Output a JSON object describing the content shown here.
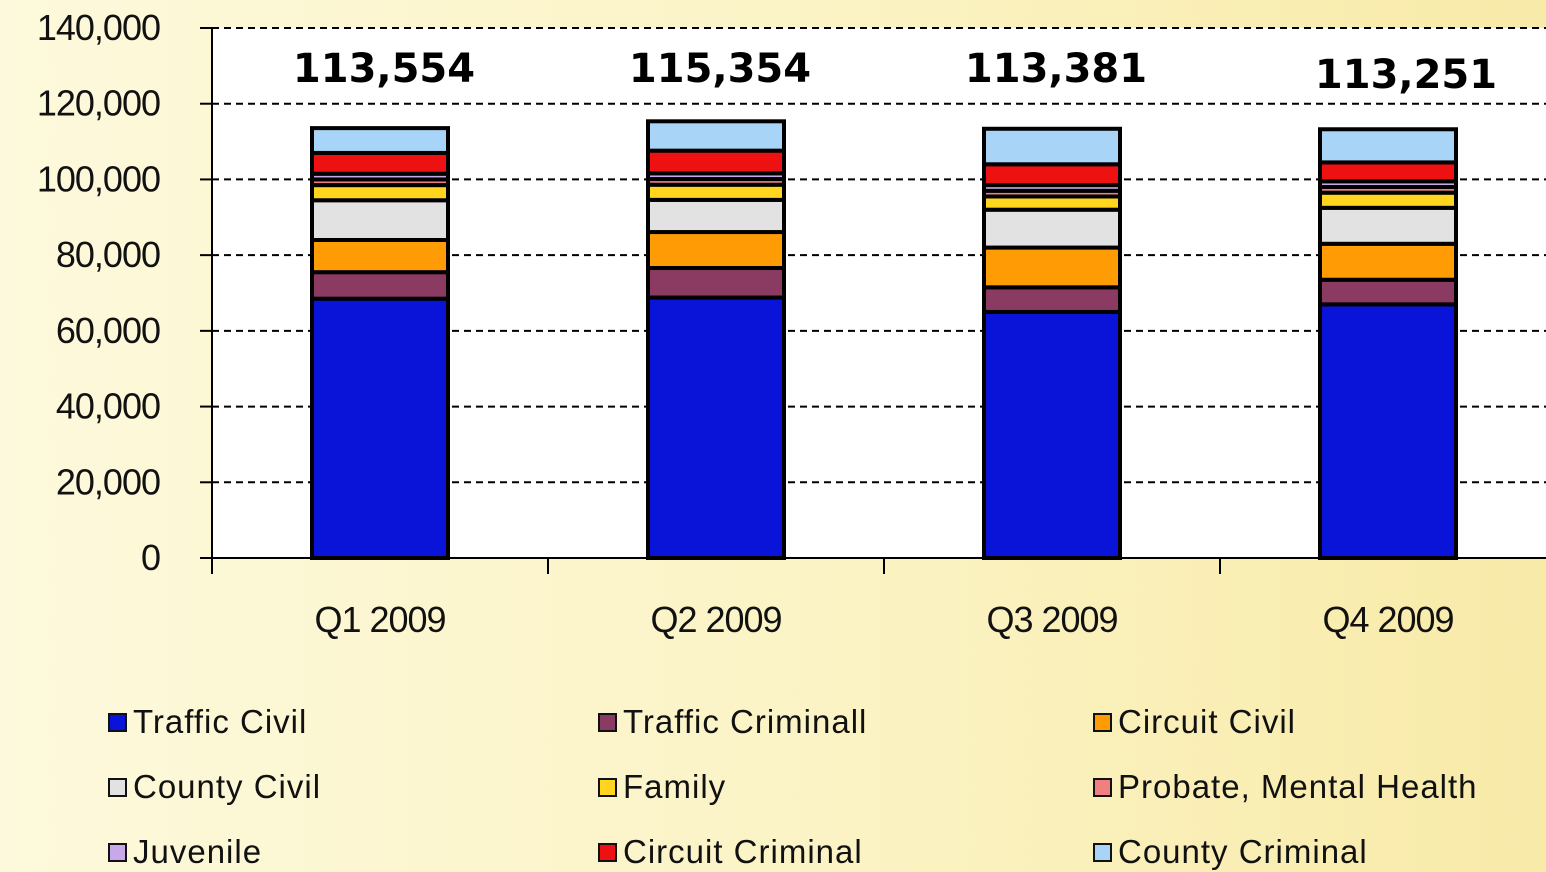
{
  "chart_data": {
    "type": "bar",
    "stacked": true,
    "categories": [
      "Q1 2009",
      "Q2 2009",
      "Q3 2009",
      "Q4 2009"
    ],
    "totals": [
      "113,554",
      "115,354",
      "113,381",
      "113,251"
    ],
    "yticks": [
      "0",
      "20,000",
      "40,000",
      "60,000",
      "80,000",
      "100,000",
      "120,000",
      "140,000"
    ],
    "ylim": [
      0,
      140000
    ],
    "grid": true,
    "legend_position": "bottom",
    "series": [
      {
        "name": "Traffic Civil",
        "color": "#0a14d8",
        "values": [
          68500,
          68800,
          65000,
          67000
        ]
      },
      {
        "name": "Traffic Criminall",
        "color": "#8b3a62",
        "values": [
          7000,
          7800,
          6500,
          6500
        ]
      },
      {
        "name": "Circuit Civil",
        "color": "#ff9b05",
        "values": [
          8500,
          9500,
          10500,
          9500
        ]
      },
      {
        "name": "County Civil",
        "color": "#e2e2e2",
        "values": [
          10500,
          8500,
          10000,
          9500
        ]
      },
      {
        "name": "Family",
        "color": "#ffd51e",
        "values": [
          4000,
          4000,
          3500,
          4000
        ]
      },
      {
        "name": "Probate, Mental Health",
        "color": "#f08080",
        "values": [
          1500,
          1500,
          1500,
          1500
        ]
      },
      {
        "name": "Juvenile",
        "color": "#c8a8e8",
        "values": [
          1500,
          1500,
          1500,
          1500
        ]
      },
      {
        "name": "Circuit Criminal",
        "color": "#ee1111",
        "values": [
          5500,
          6000,
          5500,
          5000
        ]
      },
      {
        "name": "County Criminal",
        "color": "#a8d4f8",
        "values": [
          6554,
          7754,
          9381,
          8751
        ]
      }
    ]
  }
}
